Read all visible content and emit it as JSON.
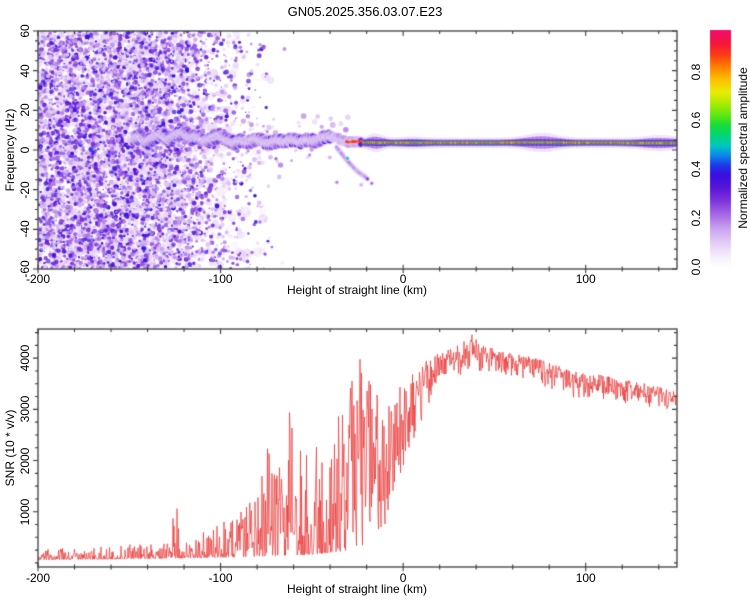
{
  "title": "GN05.2025.356.03.07.E23",
  "chart_data": [
    {
      "type": "heatmap",
      "name": "doppler-spectrogram",
      "title": "GN05.2025.356.03.07.E23",
      "xlabel": "Height of straight line (km)",
      "ylabel": "Frequency (Hz)",
      "xlim": [
        -200,
        150
      ],
      "ylim": [
        -60,
        60
      ],
      "x_tick_values": [
        -200,
        -100,
        0,
        100
      ],
      "x_tick_labels": [
        "-200",
        "-100",
        "0",
        "100"
      ],
      "x_minor_step": 20,
      "y_tick_values": [
        60,
        40,
        20,
        0,
        -20,
        -40,
        -60
      ],
      "y_tick_labels": [
        "60",
        "40",
        "20",
        "0",
        "-20",
        "-40",
        "-60"
      ],
      "y_minor_step": 5,
      "colorbar": {
        "label": "Normalized spectral amplitude",
        "tick_values": [
          0,
          0.2,
          0.4,
          0.6,
          0.8
        ],
        "tick_labels": [
          "0.0",
          "0.2",
          "0.4",
          "0.6",
          "0.8"
        ],
        "vmin": 0,
        "vmax": 0.97,
        "colormap_stops": [
          [
            0.0,
            "#ffffff"
          ],
          [
            0.04,
            "#f7f0fc"
          ],
          [
            0.1,
            "#e4cdf6"
          ],
          [
            0.16,
            "#c8a0ee"
          ],
          [
            0.22,
            "#a364e4"
          ],
          [
            0.28,
            "#782dda"
          ],
          [
            0.33,
            "#5514d6"
          ],
          [
            0.38,
            "#370fe1"
          ],
          [
            0.42,
            "#1e3ceb"
          ],
          [
            0.46,
            "#0a8ceb"
          ],
          [
            0.5,
            "#00c8be"
          ],
          [
            0.54,
            "#00d778"
          ],
          [
            0.58,
            "#14dc3c"
          ],
          [
            0.62,
            "#5ae614"
          ],
          [
            0.67,
            "#aaeb00"
          ],
          [
            0.72,
            "#ebeb00"
          ],
          [
            0.77,
            "#ffbe00"
          ],
          [
            0.82,
            "#ff8200"
          ],
          [
            0.87,
            "#ff3c14"
          ],
          [
            0.92,
            "#f5143c"
          ],
          [
            1.0,
            "#f00a8c"
          ]
        ]
      },
      "noise_region": {
        "x_start": -200,
        "dense_until": -135,
        "mid_until": -105,
        "sparse_until": -80,
        "end": -63,
        "dense_density": 1.0,
        "mid_density": 0.35,
        "sparse_density": 0.06,
        "freq_span": [
          -60,
          60
        ],
        "amplitude_range": [
          0.05,
          0.4
        ]
      },
      "band_track": [
        [
          -148,
          5,
          0.3
        ],
        [
          -144,
          7,
          0.35
        ],
        [
          -140,
          4,
          0.4
        ],
        [
          -136,
          6.5,
          0.42
        ],
        [
          -132,
          8,
          0.42
        ],
        [
          -128,
          5,
          0.45
        ],
        [
          -124,
          7.5,
          0.48
        ],
        [
          -120,
          9,
          0.5
        ],
        [
          -116,
          6,
          0.48
        ],
        [
          -112,
          7,
          0.52
        ],
        [
          -108,
          4.5,
          0.5
        ],
        [
          -104,
          6,
          0.52
        ],
        [
          -100,
          7.5,
          0.52
        ],
        [
          -96,
          5,
          0.52
        ],
        [
          -92,
          3.5,
          0.52
        ],
        [
          -88,
          5,
          0.55
        ],
        [
          -84,
          4,
          0.52
        ],
        [
          -80,
          6,
          0.55
        ],
        [
          -76,
          4,
          0.55
        ],
        [
          -72,
          3.5,
          0.55
        ],
        [
          -68,
          5,
          0.58
        ],
        [
          -64,
          4,
          0.55
        ],
        [
          -60,
          5.5,
          0.58
        ],
        [
          -56,
          4,
          0.58
        ],
        [
          -52,
          5,
          0.6
        ],
        [
          -48,
          4.5,
          0.6
        ],
        [
          -44,
          6,
          0.62
        ],
        [
          -40,
          7,
          0.6
        ],
        [
          -36,
          6,
          0.62
        ],
        [
          -33,
          4.5,
          0.68
        ],
        [
          -30,
          4,
          0.85
        ],
        [
          -27,
          4.2,
          0.88
        ],
        [
          -24,
          4.4,
          0.86
        ],
        [
          -21,
          3.6,
          0.9
        ],
        [
          -18,
          3.8,
          0.9
        ],
        [
          -14,
          3.6,
          0.92
        ],
        [
          -10,
          3.7,
          0.9
        ],
        [
          -5,
          3.6,
          0.92
        ],
        [
          0,
          3.6,
          0.92
        ],
        [
          10,
          3.6,
          0.92
        ],
        [
          20,
          3.6,
          0.92
        ],
        [
          30,
          3.6,
          0.92
        ],
        [
          40,
          3.6,
          0.92
        ],
        [
          50,
          3.6,
          0.92
        ],
        [
          60,
          3.7,
          0.9
        ],
        [
          70,
          3.8,
          0.9
        ],
        [
          76,
          3.8,
          0.88
        ],
        [
          85,
          3.7,
          0.9
        ],
        [
          95,
          3.6,
          0.92
        ],
        [
          105,
          3.6,
          0.92
        ],
        [
          115,
          3.6,
          0.92
        ],
        [
          125,
          3.5,
          0.92
        ],
        [
          135,
          3.5,
          0.92
        ],
        [
          150,
          3.5,
          0.92
        ]
      ],
      "transition_red_start": -31,
      "line_band": {
        "start": -22,
        "end": 150,
        "core_freq": 3.6,
        "core_amp": 0.92,
        "bulges": [
          {
            "center": 76,
            "sigma": 11,
            "amp": 0.85
          },
          {
            "center": 140,
            "sigma": 11,
            "amp": 0.55
          },
          {
            "center": -15,
            "sigma": 5,
            "amp": 0.8
          },
          {
            "center": 5,
            "sigma": 8,
            "amp": 0.25
          }
        ]
      },
      "dip_tail": [
        [
          -36.5,
          1.5
        ],
        [
          -34,
          -1.5
        ],
        [
          -31.5,
          -4.5
        ],
        [
          -29,
          -7
        ],
        [
          -26.5,
          -9.5
        ],
        [
          -24,
          -11.5
        ],
        [
          -21.5,
          -13
        ],
        [
          -19,
          -15
        ]
      ],
      "tail_dots": [
        [
          -30.5,
          -4.2,
          0.5
        ],
        [
          -36.3,
          -16.3,
          0.2
        ],
        [
          -17.2,
          -16.8,
          0.22
        ],
        [
          -23,
          -17.5,
          0.15
        ]
      ]
    },
    {
      "type": "line",
      "name": "snr-profile",
      "xlabel": "Height of straight line (km)",
      "ylabel": "SNR (10 * v/v)",
      "xlim": [
        -200,
        150
      ],
      "ylim": [
        -80,
        4570
      ],
      "x_tick_values": [
        -200,
        -100,
        0,
        100
      ],
      "x_tick_labels": [
        "-200",
        "-100",
        "0",
        "100"
      ],
      "x_minor_step": 20,
      "y_tick_values": [
        1000,
        2000,
        3000,
        4000
      ],
      "y_tick_labels": [
        "1000",
        "2000",
        "3000",
        "4000"
      ],
      "y_minor_step": 250,
      "line_color": "#e83535",
      "envelope": [
        [
          -200,
          60,
          270
        ],
        [
          -185,
          65,
          290
        ],
        [
          -170,
          70,
          310
        ],
        [
          -155,
          75,
          340
        ],
        [
          -145,
          80,
          380
        ],
        [
          -136,
          85,
          430
        ],
        [
          -128,
          90,
          480
        ],
        [
          -124,
          95,
          1300
        ],
        [
          -121,
          90,
          520
        ],
        [
          -115,
          95,
          560
        ],
        [
          -108,
          100,
          640
        ],
        [
          -102,
          105,
          760
        ],
        [
          -96,
          110,
          880
        ],
        [
          -90,
          115,
          1000
        ],
        [
          -85,
          120,
          1150
        ],
        [
          -80,
          125,
          1500
        ],
        [
          -76,
          130,
          2100
        ],
        [
          -71,
          140,
          2500
        ],
        [
          -66,
          145,
          3100
        ],
        [
          -63,
          150,
          3350
        ],
        [
          -59,
          150,
          2400
        ],
        [
          -54,
          160,
          2100
        ],
        [
          -49,
          170,
          2500
        ],
        [
          -44,
          185,
          2300
        ],
        [
          -39,
          200,
          2700
        ],
        [
          -35,
          220,
          2900
        ],
        [
          -31,
          250,
          3150
        ],
        [
          -27,
          280,
          3700
        ],
        [
          -23,
          320,
          4050
        ],
        [
          -20,
          360,
          4250
        ],
        [
          -17,
          420,
          3650
        ],
        [
          -14,
          520,
          3400
        ],
        [
          -11,
          650,
          3150
        ],
        [
          -8,
          850,
          3050
        ],
        [
          -5,
          1250,
          3350
        ],
        [
          -2,
          1600,
          3600
        ],
        [
          1,
          1900,
          3550
        ],
        [
          4,
          2250,
          3700
        ],
        [
          8,
          2600,
          3850
        ],
        [
          12,
          2950,
          3950
        ],
        [
          16,
          3200,
          4050
        ],
        [
          20,
          3400,
          4100
        ],
        [
          26,
          3520,
          4180
        ],
        [
          32,
          3560,
          4300
        ],
        [
          38,
          3620,
          4480
        ],
        [
          44,
          3640,
          4250
        ],
        [
          50,
          3600,
          4180
        ],
        [
          57,
          3550,
          4120
        ],
        [
          64,
          3500,
          4080
        ],
        [
          70,
          3450,
          4020
        ],
        [
          76,
          3350,
          3980
        ],
        [
          81,
          3280,
          3900
        ],
        [
          86,
          3320,
          3860
        ],
        [
          91,
          3120,
          3800
        ],
        [
          96,
          3080,
          3760
        ],
        [
          101,
          3180,
          3720
        ],
        [
          108,
          3120,
          3680
        ],
        [
          115,
          3080,
          3620
        ],
        [
          122,
          3020,
          3580
        ],
        [
          129,
          3020,
          3520
        ],
        [
          136,
          2980,
          3480
        ],
        [
          143,
          2920,
          3420
        ],
        [
          150,
          2960,
          3340
        ]
      ]
    }
  ]
}
